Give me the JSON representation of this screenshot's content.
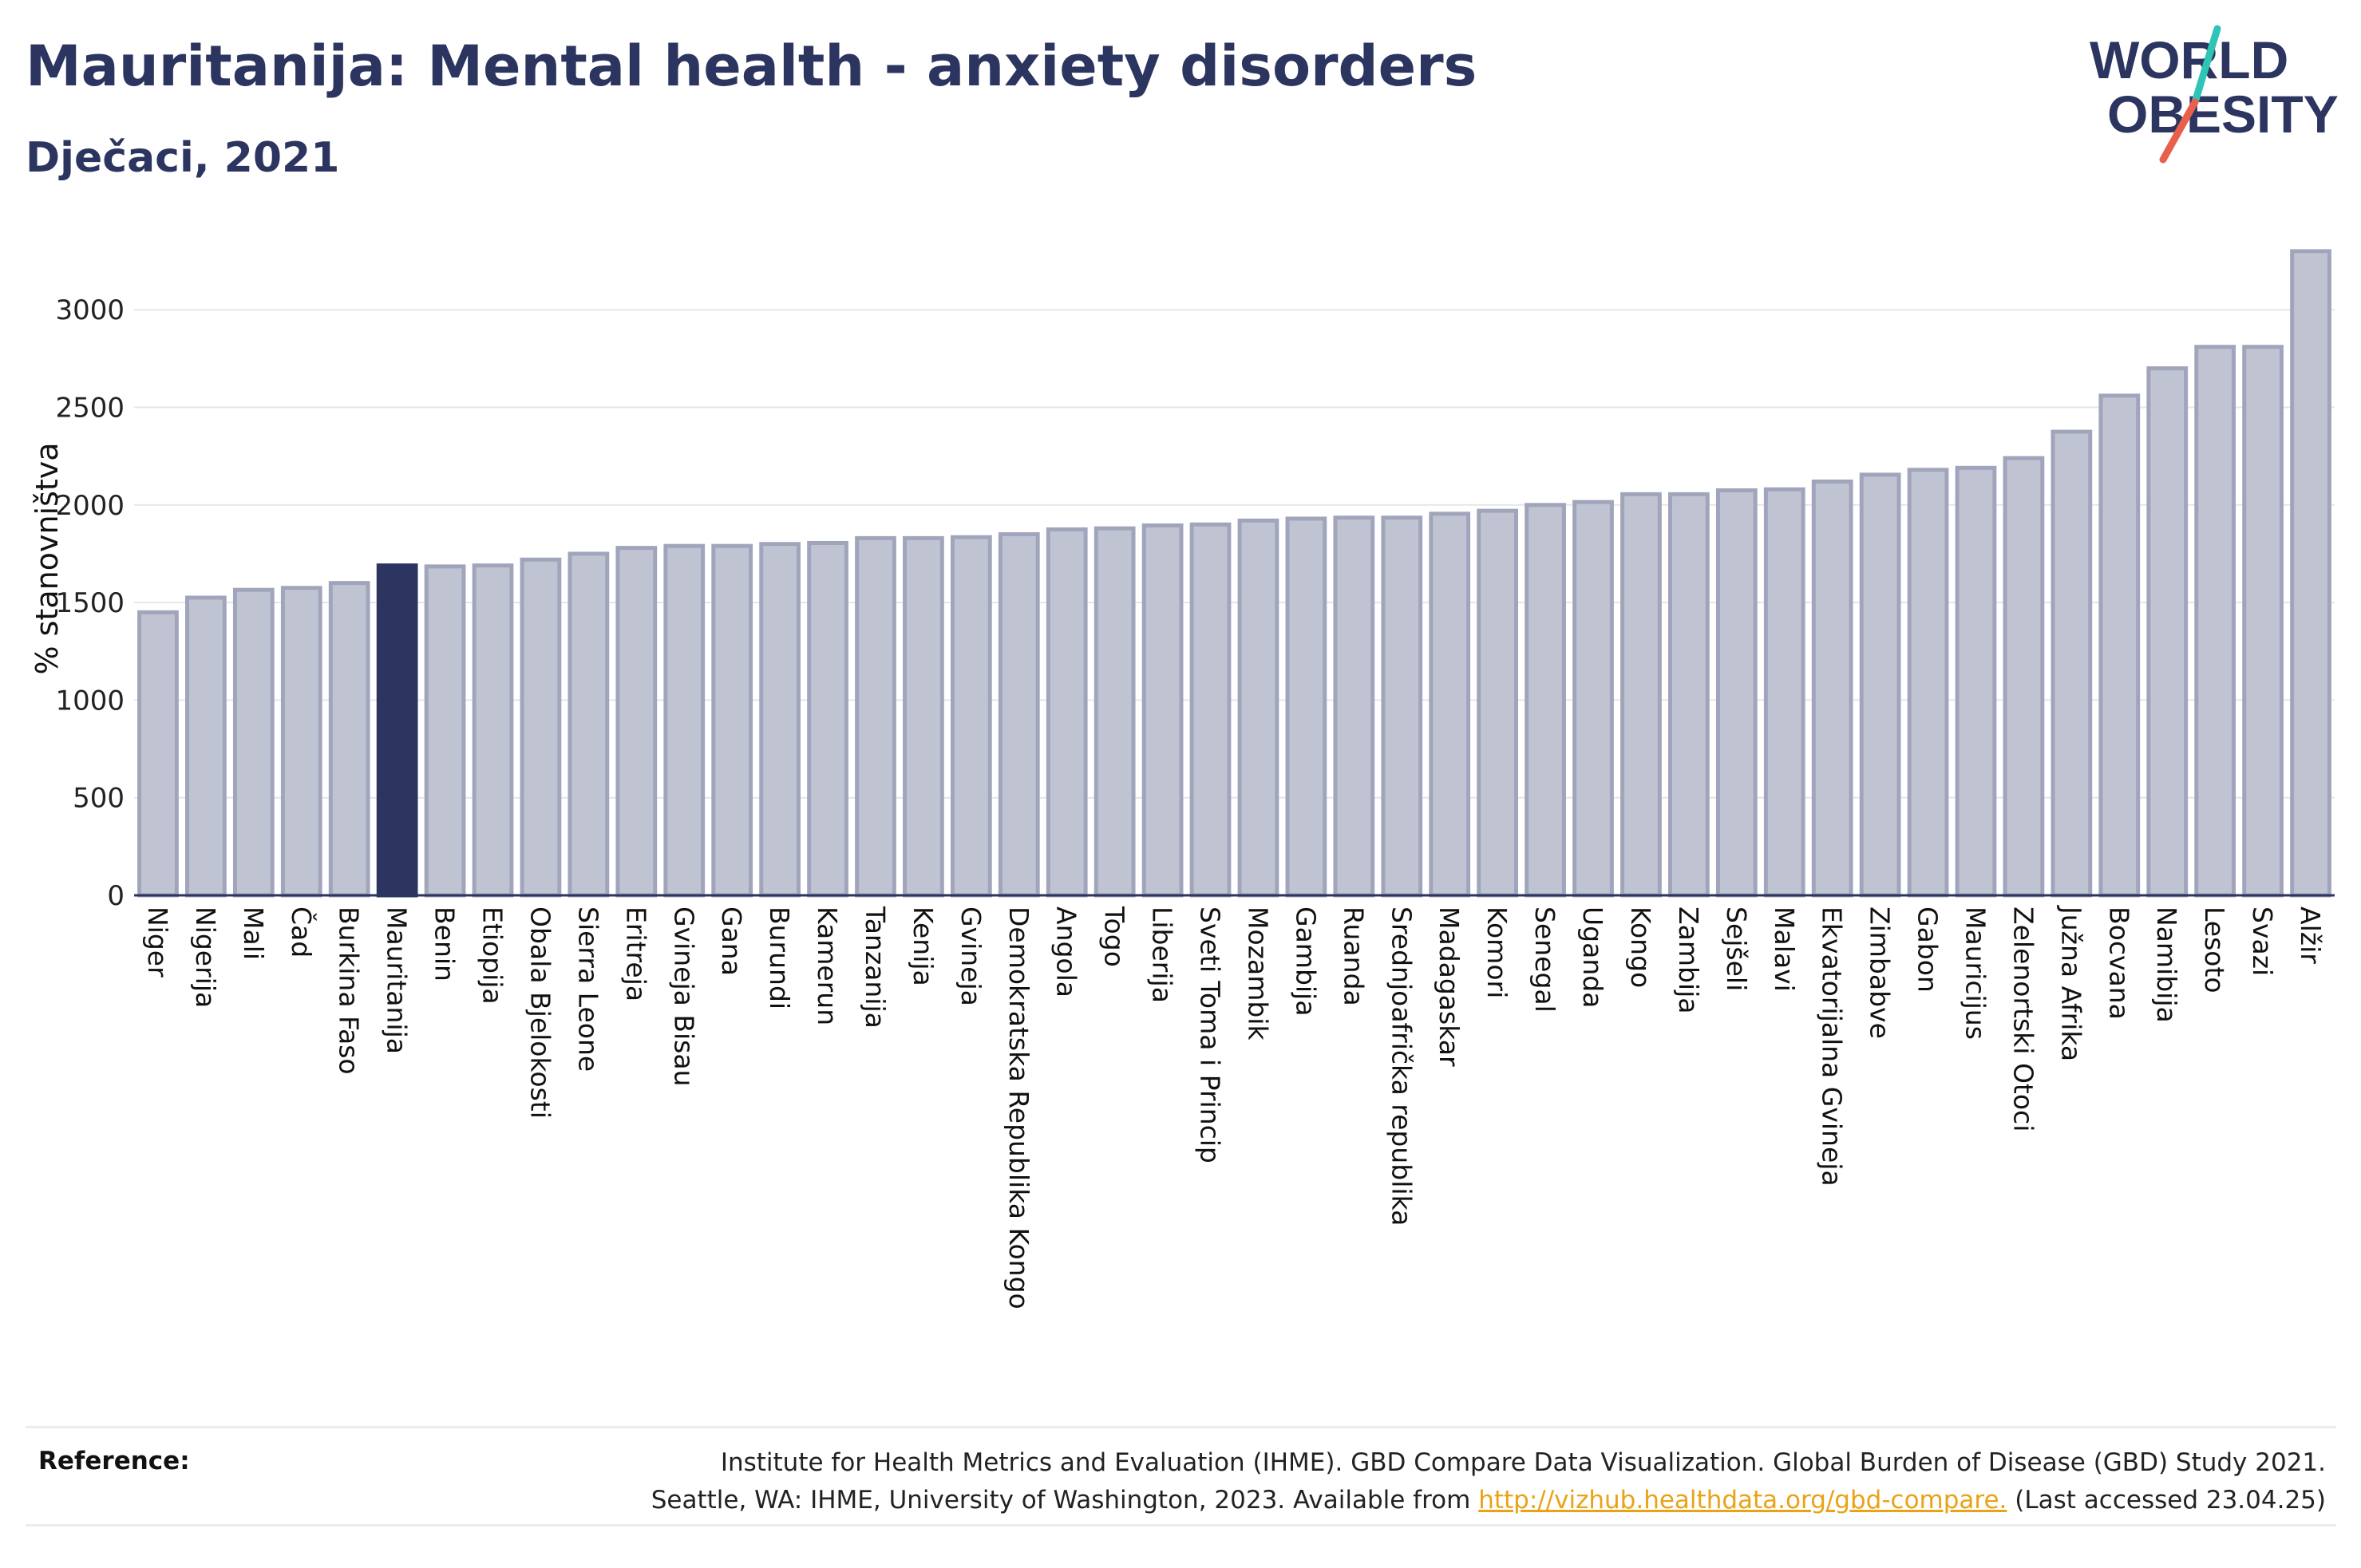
{
  "title": "Mauritanija: Mental health - anxiety disorders",
  "subtitle": "Dječaci, 2021",
  "logo": {
    "line1": "WORLD",
    "line2": "OBESITY"
  },
  "colors": {
    "highlight": "#2c3560",
    "bar": "#c0c4d2",
    "bar_edge": "#a0a5bc",
    "accent_teal": "#2ec4b6",
    "accent_red": "#e8604c",
    "link": "#e8a317"
  },
  "chart_data": {
    "type": "bar",
    "ylabel": "% stanovništva",
    "ylim": [
      0,
      3400
    ],
    "yticks": [
      0,
      500,
      1000,
      1500,
      2000,
      2500,
      3000
    ],
    "grid": true,
    "highlight": "Mauritanija",
    "categories": [
      "Niger",
      "Nigerija",
      "Mali",
      "Čad",
      "Burkina Faso",
      "Mauritanija",
      "Benin",
      "Etiopija",
      "Obala Bjelokosti",
      "Sierra Leone",
      "Eritreja",
      "Gvineja Bisau",
      "Gana",
      "Burundi",
      "Kamerun",
      "Tanzanija",
      "Kenija",
      "Gvineja",
      "Demokratska Republika Kongo",
      "Angola",
      "Togo",
      "Liberija",
      "Sveti Toma i Princip",
      "Mozambik",
      "Gambija",
      "Ruanda",
      "Srednjoafrička republika",
      "Madagaskar",
      "Komori",
      "Senegal",
      "Uganda",
      "Kongo",
      "Zambija",
      "Sejšeli",
      "Malavi",
      "Ekvatorijalna Gvineja",
      "Zimbabve",
      "Gabon",
      "Mauricijus",
      "Zelenortski Otoci",
      "Južna Afrika",
      "Bocvana",
      "Namibija",
      "Lesoto",
      "Svazi",
      "Alžir"
    ],
    "values": [
      1450,
      1525,
      1565,
      1575,
      1600,
      1690,
      1685,
      1690,
      1720,
      1750,
      1780,
      1790,
      1790,
      1800,
      1805,
      1830,
      1830,
      1835,
      1850,
      1875,
      1880,
      1895,
      1900,
      1920,
      1930,
      1935,
      1935,
      1955,
      1970,
      2000,
      2015,
      2055,
      2055,
      2075,
      2080,
      2120,
      2155,
      2180,
      2190,
      2240,
      2375,
      2560,
      2700,
      2810,
      2810,
      3300
    ]
  },
  "reference": {
    "label": "Reference:",
    "line1": "Institute for Health Metrics and Evaluation (IHME). GBD Compare Data Visualization. Global Burden of Disease (GBD) Study 2021.",
    "line2_prefix": "Seattle, WA: IHME, University of Washington, 2023. Available from",
    "link": "http://vizhub.healthdata.org/gbd-compare.",
    "line2_suffix": "(Last accessed 23.04.25)"
  }
}
